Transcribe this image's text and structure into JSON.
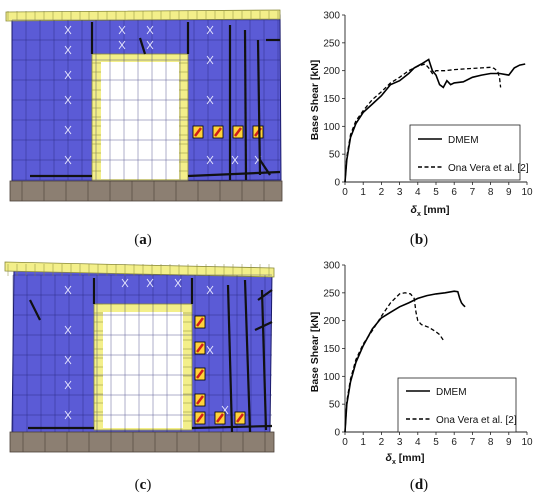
{
  "panels": {
    "a": {
      "caption_open": "(",
      "caption_letter": "a",
      "caption_close": ")"
    },
    "b": {
      "caption_open": "(",
      "caption_letter": "b",
      "caption_close": ")"
    },
    "c": {
      "caption_open": "(",
      "caption_letter": "c",
      "caption_close": ")"
    },
    "d": {
      "caption_open": "(",
      "caption_letter": "d",
      "caption_close": ")"
    }
  },
  "colors": {
    "panel_fill": "#5b5bd6",
    "panel_border": "#1a1a6a",
    "frame_fill": "#f3ef8a",
    "frame_border": "#8a8a3a",
    "base_fill": "#8c7f72",
    "opening_fill": "#ffffff",
    "crack_color": "#111111"
  },
  "chart_data": [
    {
      "type": "line",
      "panel": "b",
      "xlabel_base": "δ",
      "xlabel_sub": "x",
      "xlabel_unit": " [mm]",
      "ylabel": "Base Shear [kN]",
      "xlim": [
        0,
        10
      ],
      "ylim": [
        0,
        300
      ],
      "xticks": [
        0,
        1,
        2,
        3,
        4,
        5,
        6,
        7,
        8,
        9,
        10
      ],
      "yticks": [
        0,
        50,
        100,
        150,
        200,
        250,
        300
      ],
      "legend_position": "bottom-right",
      "series": [
        {
          "name": "DMEM",
          "style": "solid",
          "x": [
            0,
            0.1,
            0.3,
            0.6,
            1.0,
            1.5,
            2.0,
            2.5,
            3.0,
            3.5,
            3.8,
            4.2,
            4.6,
            4.8,
            5.0,
            5.2,
            5.4,
            5.6,
            5.8,
            6.0,
            6.5,
            7.0,
            7.5,
            8.0,
            8.5,
            9.0,
            9.3,
            9.6,
            9.9
          ],
          "y": [
            0,
            40,
            80,
            105,
            125,
            140,
            155,
            175,
            182,
            195,
            205,
            212,
            220,
            200,
            192,
            175,
            170,
            182,
            175,
            178,
            180,
            188,
            192,
            195,
            195,
            192,
            205,
            210,
            212
          ]
        },
        {
          "name": "Ona Vera et al. [2]",
          "style": "dashed",
          "x": [
            0,
            0.1,
            0.3,
            0.6,
            1.0,
            1.5,
            2.0,
            2.5,
            3.0,
            3.5,
            4.0,
            4.2,
            4.4,
            4.6,
            4.8,
            5.0,
            5.5,
            6.0,
            6.5,
            7.0,
            7.5,
            8.0,
            8.2,
            8.4,
            8.5,
            8.55
          ],
          "y": [
            0,
            45,
            85,
            110,
            128,
            148,
            162,
            178,
            188,
            200,
            208,
            210,
            212,
            205,
            195,
            200,
            200,
            202,
            203,
            204,
            205,
            206,
            204,
            198,
            185,
            170
          ]
        }
      ]
    },
    {
      "type": "line",
      "panel": "d",
      "xlabel_base": "δ",
      "xlabel_sub": "x",
      "xlabel_unit": " [mm]",
      "ylabel": "Base Shear [kN]",
      "xlim": [
        0,
        10
      ],
      "ylim": [
        0,
        300
      ],
      "xticks": [
        0,
        1,
        2,
        3,
        4,
        5,
        6,
        7,
        8,
        9,
        10
      ],
      "yticks": [
        0,
        50,
        100,
        150,
        200,
        250,
        300
      ],
      "legend_position": "bottom-right",
      "series": [
        {
          "name": "DMEM",
          "style": "solid",
          "x": [
            0,
            0.1,
            0.3,
            0.6,
            1.0,
            1.5,
            2.0,
            2.5,
            3.0,
            3.5,
            4.0,
            4.5,
            5.0,
            5.5,
            6.0,
            6.2,
            6.3,
            6.4,
            6.5,
            6.6
          ],
          "y": [
            0,
            50,
            90,
            125,
            155,
            185,
            205,
            215,
            225,
            232,
            240,
            245,
            248,
            250,
            253,
            252,
            240,
            232,
            228,
            225
          ]
        },
        {
          "name": "Ona Vera et al. [2]",
          "style": "dashed",
          "x": [
            0,
            0.1,
            0.3,
            0.6,
            1.0,
            1.5,
            2.0,
            2.5,
            3.0,
            3.3,
            3.6,
            3.8,
            3.9,
            4.0,
            4.2,
            4.6,
            5.0,
            5.2,
            5.4
          ],
          "y": [
            0,
            55,
            95,
            130,
            158,
            182,
            208,
            232,
            248,
            250,
            248,
            240,
            215,
            200,
            193,
            188,
            180,
            175,
            165
          ]
        }
      ]
    }
  ]
}
